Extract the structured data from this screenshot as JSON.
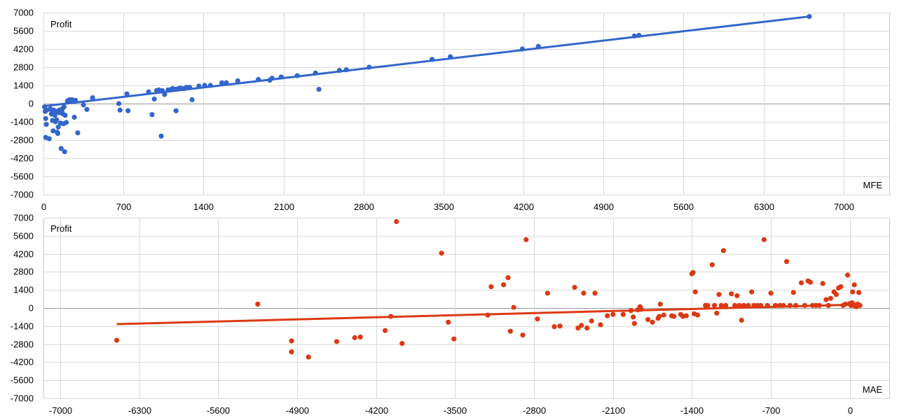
{
  "chart_data": [
    {
      "type": "scatter",
      "id": "mfe",
      "ylabel": "Profit",
      "xlabel": "MFE",
      "xlim": [
        0,
        7400
      ],
      "ylim": [
        -7000,
        7000
      ],
      "xticks": [
        0,
        700,
        1400,
        2100,
        2800,
        3500,
        4200,
        4900,
        5600,
        6300,
        7000
      ],
      "yticks": [
        7000,
        5600,
        4200,
        2800,
        1400,
        0,
        -1400,
        -2800,
        -4200,
        -5600,
        -7000
      ],
      "grid": true,
      "color": "#3366cc",
      "trendline": {
        "from": [
          0,
          -200
        ],
        "to": [
          6700,
          6700
        ]
      },
      "points": [
        [
          10,
          -250
        ],
        [
          15,
          -600
        ],
        [
          20,
          -1150
        ],
        [
          25,
          -1600
        ],
        [
          30,
          -500
        ],
        [
          20,
          -2600
        ],
        [
          50,
          -2700
        ],
        [
          60,
          -400
        ],
        [
          70,
          -800
        ],
        [
          75,
          -600
        ],
        [
          80,
          -1300
        ],
        [
          85,
          -2100
        ],
        [
          90,
          -500
        ],
        [
          95,
          -700
        ],
        [
          100,
          -900
        ],
        [
          105,
          -1400
        ],
        [
          110,
          -600
        ],
        [
          115,
          -1250
        ],
        [
          120,
          -2200
        ],
        [
          125,
          -2300
        ],
        [
          130,
          -1800
        ],
        [
          135,
          -700
        ],
        [
          140,
          -500
        ],
        [
          150,
          -1500
        ],
        [
          155,
          -3450
        ],
        [
          160,
          -600
        ],
        [
          165,
          -400
        ],
        [
          170,
          -800
        ],
        [
          175,
          -1550
        ],
        [
          180,
          -250
        ],
        [
          185,
          -3700
        ],
        [
          190,
          -900
        ],
        [
          200,
          -1450
        ],
        [
          210,
          200
        ],
        [
          220,
          250
        ],
        [
          230,
          300
        ],
        [
          240,
          250
        ],
        [
          250,
          300
        ],
        [
          270,
          -1050
        ],
        [
          280,
          250
        ],
        [
          300,
          -2250
        ],
        [
          350,
          -100
        ],
        [
          380,
          -450
        ],
        [
          430,
          450
        ],
        [
          660,
          0
        ],
        [
          670,
          -500
        ],
        [
          730,
          750
        ],
        [
          740,
          -550
        ],
        [
          920,
          900
        ],
        [
          950,
          -850
        ],
        [
          970,
          350
        ],
        [
          990,
          1000
        ],
        [
          1010,
          1050
        ],
        [
          1030,
          -2500
        ],
        [
          1040,
          1000
        ],
        [
          1060,
          700
        ],
        [
          1090,
          1050
        ],
        [
          1120,
          1100
        ],
        [
          1130,
          1150
        ],
        [
          1150,
          1100
        ],
        [
          1160,
          -550
        ],
        [
          1180,
          1150
        ],
        [
          1200,
          1200
        ],
        [
          1230,
          1150
        ],
        [
          1250,
          1250
        ],
        [
          1280,
          1250
        ],
        [
          1300,
          300
        ],
        [
          1360,
          1350
        ],
        [
          1410,
          1400
        ],
        [
          1460,
          1400
        ],
        [
          1560,
          1600
        ],
        [
          1600,
          1600
        ],
        [
          1700,
          1750
        ],
        [
          1880,
          1850
        ],
        [
          1980,
          1800
        ],
        [
          2000,
          1950
        ],
        [
          2080,
          2050
        ],
        [
          2220,
          2150
        ],
        [
          2380,
          2350
        ],
        [
          2410,
          1100
        ],
        [
          2590,
          2550
        ],
        [
          2650,
          2600
        ],
        [
          2850,
          2800
        ],
        [
          3400,
          3400
        ],
        [
          3560,
          3600
        ],
        [
          4190,
          4200
        ],
        [
          4330,
          4400
        ],
        [
          5170,
          5200
        ],
        [
          5210,
          5250
        ],
        [
          6700,
          6700
        ]
      ]
    },
    {
      "type": "scatter",
      "id": "mae",
      "ylabel": "Profit",
      "xlabel": "MAE",
      "xlim": [
        -7150,
        350
      ],
      "ylim": [
        -7000,
        7000
      ],
      "xticks": [
        -7000,
        -6300,
        -5600,
        -4900,
        -4200,
        -3500,
        -2800,
        -2100,
        -1400,
        -700,
        0
      ],
      "yticks": [
        7000,
        5600,
        4200,
        2800,
        1400,
        0,
        -1400,
        -2800,
        -4200,
        -5600,
        -7000
      ],
      "grid": true,
      "color": "#dc3912",
      "trendline": {
        "from": [
          -6500,
          -1250
        ],
        "to": [
          0,
          250
        ]
      },
      "points": [
        [
          -6500,
          -2500
        ],
        [
          -5250,
          300
        ],
        [
          -4950,
          -2550
        ],
        [
          -4950,
          -3400
        ],
        [
          -4800,
          -3800
        ],
        [
          -4550,
          -2600
        ],
        [
          -4390,
          -2300
        ],
        [
          -4340,
          -2250
        ],
        [
          -4120,
          -1750
        ],
        [
          -4070,
          -650
        ],
        [
          -4020,
          6700
        ],
        [
          -3970,
          -2750
        ],
        [
          -3620,
          4250
        ],
        [
          -3560,
          -1100
        ],
        [
          -3510,
          -2400
        ],
        [
          -3210,
          -550
        ],
        [
          -3180,
          1650
        ],
        [
          -3070,
          1800
        ],
        [
          -3030,
          2350
        ],
        [
          -3010,
          -1800
        ],
        [
          -2980,
          50
        ],
        [
          -2900,
          -2100
        ],
        [
          -2870,
          5300
        ],
        [
          -2770,
          -850
        ],
        [
          -2680,
          1150
        ],
        [
          -2620,
          -1450
        ],
        [
          -2570,
          -1400
        ],
        [
          -2440,
          1600
        ],
        [
          -2410,
          -1550
        ],
        [
          -2380,
          -1350
        ],
        [
          -2360,
          1150
        ],
        [
          -2330,
          -1550
        ],
        [
          -2290,
          -1000
        ],
        [
          -2260,
          1150
        ],
        [
          -2210,
          -1300
        ],
        [
          -2150,
          -600
        ],
        [
          -2100,
          -500
        ],
        [
          -2010,
          -500
        ],
        [
          -1940,
          -200
        ],
        [
          -1920,
          -700
        ],
        [
          -1910,
          -1200
        ],
        [
          -1880,
          -150
        ],
        [
          -1860,
          100
        ],
        [
          -1850,
          -100
        ],
        [
          -1790,
          -900
        ],
        [
          -1750,
          -1100
        ],
        [
          -1700,
          -800
        ],
        [
          -1690,
          -650
        ],
        [
          -1680,
          300
        ],
        [
          -1650,
          -550
        ],
        [
          -1580,
          -600
        ],
        [
          -1560,
          -650
        ],
        [
          -1500,
          -500
        ],
        [
          -1480,
          -650
        ],
        [
          -1450,
          -600
        ],
        [
          -1400,
          2650
        ],
        [
          -1390,
          2750
        ],
        [
          -1380,
          -450
        ],
        [
          -1370,
          1250
        ],
        [
          -1350,
          -550
        ],
        [
          -1280,
          200
        ],
        [
          -1260,
          200
        ],
        [
          -1220,
          3350
        ],
        [
          -1200,
          200
        ],
        [
          -1180,
          -400
        ],
        [
          -1160,
          1050
        ],
        [
          -1140,
          200
        ],
        [
          -1120,
          4450
        ],
        [
          -1100,
          200
        ],
        [
          -1050,
          1100
        ],
        [
          -1020,
          200
        ],
        [
          -1000,
          950
        ],
        [
          -980,
          200
        ],
        [
          -960,
          -950
        ],
        [
          -940,
          200
        ],
        [
          -900,
          200
        ],
        [
          -870,
          1250
        ],
        [
          -850,
          200
        ],
        [
          -820,
          200
        ],
        [
          -790,
          200
        ],
        [
          -760,
          5300
        ],
        [
          -730,
          200
        ],
        [
          -700,
          1150
        ],
        [
          -660,
          200
        ],
        [
          -620,
          200
        ],
        [
          -590,
          200
        ],
        [
          -560,
          3600
        ],
        [
          -530,
          200
        ],
        [
          -500,
          1200
        ],
        [
          -480,
          200
        ],
        [
          -430,
          1950
        ],
        [
          -400,
          200
        ],
        [
          -370,
          2100
        ],
        [
          -350,
          2000
        ],
        [
          -330,
          200
        ],
        [
          -300,
          200
        ],
        [
          -270,
          200
        ],
        [
          -240,
          1900
        ],
        [
          -210,
          650
        ],
        [
          -190,
          200
        ],
        [
          -170,
          750
        ],
        [
          -140,
          1250
        ],
        [
          -120,
          1050
        ],
        [
          -100,
          1550
        ],
        [
          -80,
          1650
        ],
        [
          -60,
          200
        ],
        [
          -40,
          300
        ],
        [
          -20,
          2550
        ],
        [
          0,
          350
        ],
        [
          10,
          200
        ],
        [
          20,
          400
        ],
        [
          25,
          1250
        ],
        [
          30,
          300
        ],
        [
          40,
          1800
        ],
        [
          45,
          150
        ],
        [
          55,
          200
        ],
        [
          60,
          100
        ],
        [
          70,
          300
        ],
        [
          80,
          1200
        ],
        [
          90,
          200
        ]
      ]
    }
  ]
}
